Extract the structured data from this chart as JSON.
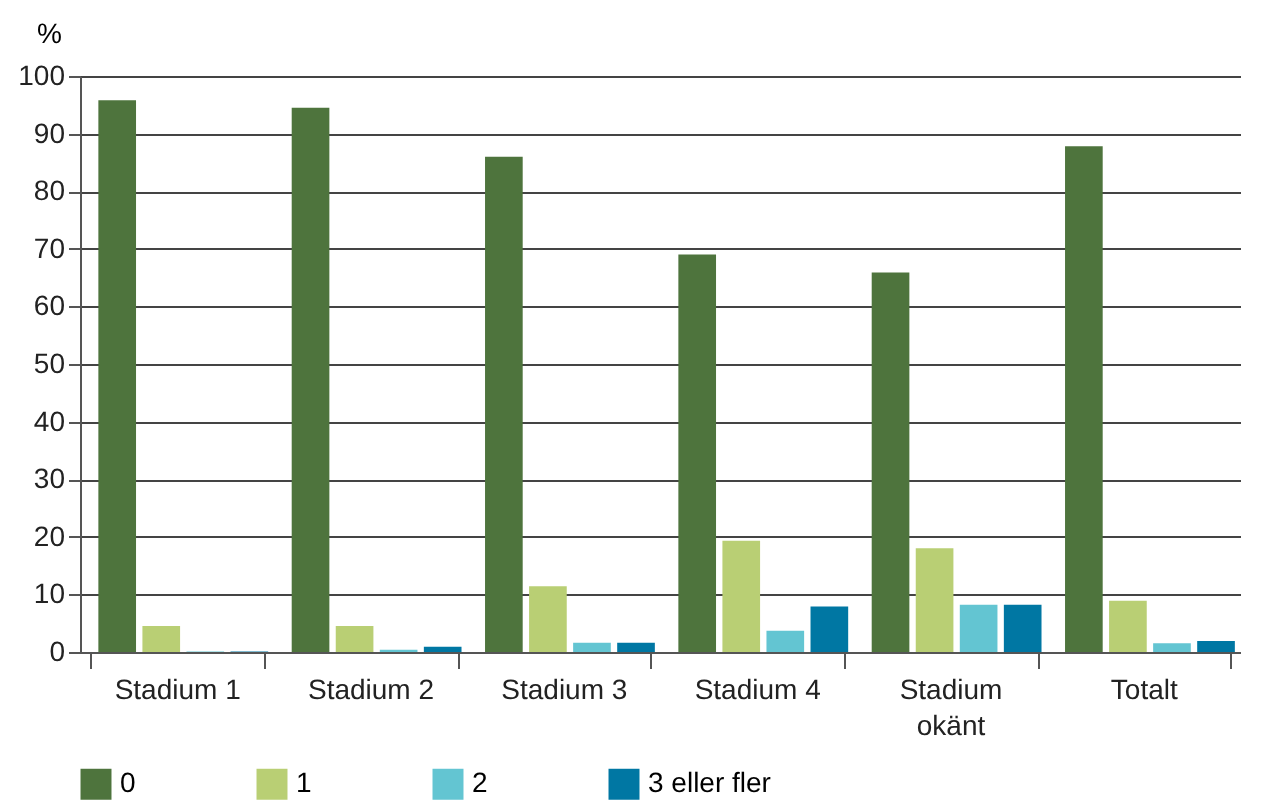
{
  "chart_data": {
    "type": "bar",
    "ylabel": "%",
    "categories": [
      "Stadium 1",
      "Stadium 2",
      "Stadium 3",
      "Stadium 4",
      "Stadium okänt",
      "Totalt"
    ],
    "series": [
      {
        "name": "0",
        "color": "#4e743d",
        "values": [
          95.8,
          94.5,
          86,
          69,
          65.9,
          87.8
        ]
      },
      {
        "name": "1",
        "color": "#b9cf74",
        "values": [
          4.5,
          4.5,
          11.4,
          19.3,
          18,
          8.9
        ]
      },
      {
        "name": "2",
        "color": "#63c5d2",
        "values": [
          0.1,
          0.4,
          1.6,
          3.7,
          8.2,
          1.5
        ]
      },
      {
        "name": "3 eller fler",
        "color": "#0077a3",
        "values": [
          0.1,
          0.9,
          1.6,
          7.9,
          8.2,
          1.9
        ]
      }
    ],
    "ylim": [
      0,
      100
    ],
    "yticks": [
      0,
      10,
      20,
      30,
      40,
      50,
      60,
      70,
      80,
      90,
      100
    ],
    "grid": "y",
    "legend": "bottom"
  }
}
